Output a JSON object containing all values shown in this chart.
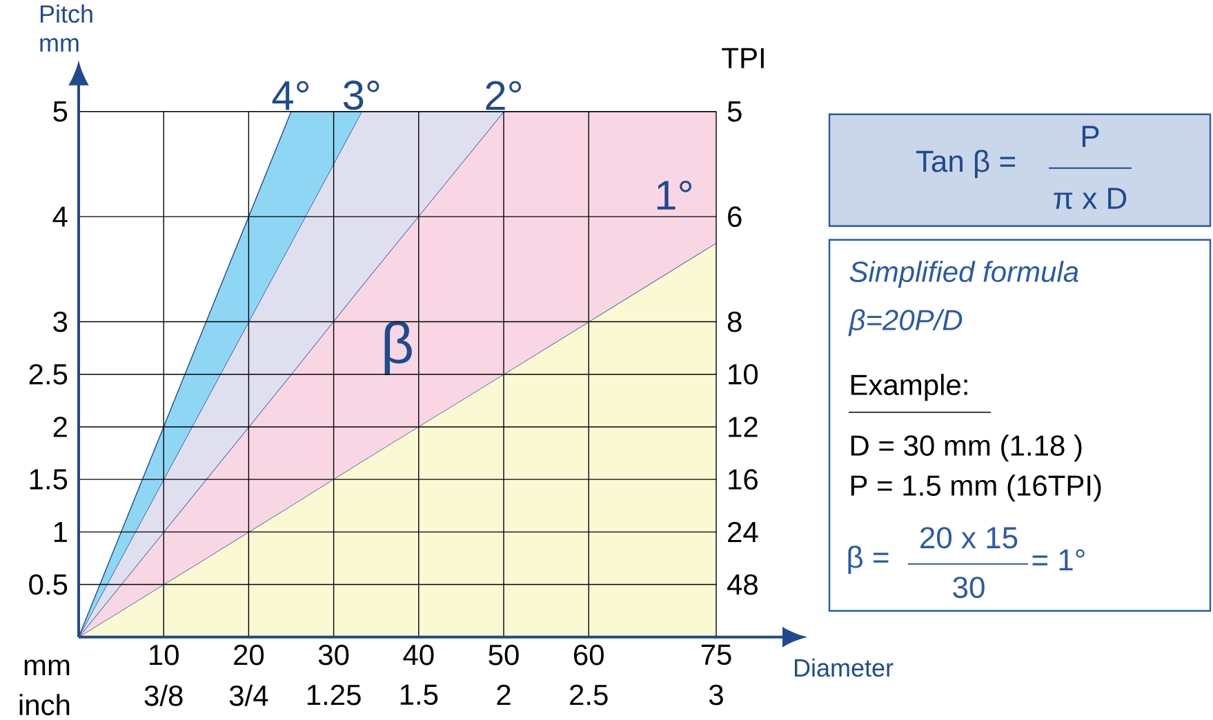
{
  "chart_data": [
    {
      "type": "area",
      "xlabel": "Diameter",
      "ylabel": "Pitch mm",
      "y2label": "TPI",
      "xlim": [
        0,
        75
      ],
      "ylim": [
        0,
        5
      ],
      "xticks": [
        10,
        20,
        30,
        40,
        50,
        60,
        75
      ],
      "yticks": [
        0.5,
        1,
        1.5,
        2,
        2.5,
        3,
        4,
        5
      ],
      "grid": true,
      "stacked": true,
      "x": [
        0,
        25,
        33.3,
        50,
        75
      ],
      "series": [
        {
          "name": "1°",
          "color": "#fbf8d4",
          "values": [
            0,
            1.25,
            1.67,
            2.5,
            3.75
          ]
        },
        {
          "name": "2°",
          "color": "#f8d6e4",
          "values": [
            0,
            1.25,
            1.67,
            2.5,
            1.25
          ]
        },
        {
          "name": "3°",
          "color": "#e0dff0",
          "values": [
            0,
            1.25,
            1.66,
            0,
            null
          ]
        },
        {
          "name": "4°",
          "color": "#8fd6f4",
          "values": [
            0,
            1.25,
            0,
            null,
            null
          ]
        }
      ],
      "annotations": [
        "mm",
        "inch",
        "β",
        "3/8",
        "3/4",
        "1.25",
        "1.5",
        "2",
        "2.5",
        "3",
        "48",
        "24",
        "16",
        "12",
        "10",
        "8",
        "6",
        "5"
      ]
    },
    {
      "type": "other",
      "annotations": [
        "Tan β =",
        "P",
        "π x D",
        "Simplified formula",
        "β=20P/D",
        "Example:",
        "D = 30 mm (1.18 )",
        "P = 1.5 mm (16TPI)",
        "β =",
        "20 x 15",
        "30",
        "= 1°"
      ]
    }
  ]
}
